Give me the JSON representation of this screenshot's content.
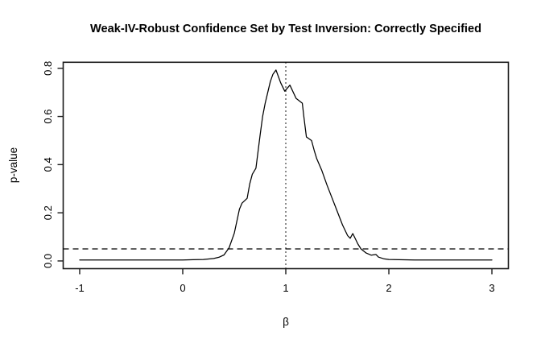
{
  "title": "Weak-IV-Robust Confidence Set by Test Inversion: Correctly Specified",
  "colors": {
    "background": "#ffffff",
    "foreground": "#000000",
    "box": "#1a1a1a"
  },
  "chart_data": {
    "type": "line",
    "title": "Weak-IV-Robust Confidence Set by Test Inversion: Correctly Specified",
    "xlabel": "β",
    "ylabel": "p-value",
    "xlim": [
      -1.16,
      3.16
    ],
    "ylim": [
      -0.032,
      0.825
    ],
    "x_ticks": [
      -1,
      0,
      1,
      2,
      3
    ],
    "x_tick_labels": [
      "-1",
      "0",
      "1",
      "2",
      "3"
    ],
    "y_ticks": [
      0.0,
      0.2,
      0.4,
      0.6,
      0.8
    ],
    "y_tick_labels": [
      "0.0",
      "0.2",
      "0.4",
      "0.6",
      "0.8"
    ],
    "grid": false,
    "legend": "none",
    "reference_lines": [
      {
        "name": "significance-level",
        "orientation": "horizontal",
        "value": 0.05,
        "style": "dashed",
        "color": "#000000"
      },
      {
        "name": "beta-equals-one",
        "orientation": "vertical",
        "value": 1,
        "style": "dotted",
        "color": "#000000"
      }
    ],
    "series": [
      {
        "name": "p-value curve",
        "color": "#000000",
        "x": [
          -1.0,
          -0.9,
          -0.8,
          -0.7,
          -0.6,
          -0.5,
          -0.4,
          -0.3,
          -0.2,
          -0.1,
          0.0,
          0.1,
          0.2,
          0.3,
          0.35,
          0.4,
          0.45,
          0.5,
          0.55,
          0.575,
          0.625,
          0.65,
          0.675,
          0.71,
          0.75,
          0.775,
          0.8,
          0.825,
          0.85,
          0.875,
          0.905,
          0.95,
          0.99,
          1.04,
          1.1,
          1.16,
          1.175,
          1.2,
          1.25,
          1.275,
          1.3,
          1.35,
          1.4,
          1.45,
          1.5,
          1.55,
          1.6,
          1.625,
          1.65,
          1.7,
          1.73,
          1.78,
          1.83,
          1.875,
          1.9,
          1.95,
          2.0,
          2.1,
          2.25,
          2.5,
          2.75,
          3.0
        ],
        "y": [
          0.004,
          0.004,
          0.004,
          0.004,
          0.004,
          0.004,
          0.004,
          0.004,
          0.004,
          0.004,
          0.004,
          0.005,
          0.006,
          0.01,
          0.015,
          0.025,
          0.055,
          0.115,
          0.215,
          0.24,
          0.26,
          0.32,
          0.36,
          0.385,
          0.52,
          0.6,
          0.655,
          0.7,
          0.745,
          0.775,
          0.793,
          0.74,
          0.705,
          0.73,
          0.675,
          0.655,
          0.6,
          0.515,
          0.5,
          0.46,
          0.425,
          0.375,
          0.315,
          0.26,
          0.205,
          0.15,
          0.105,
          0.094,
          0.114,
          0.07,
          0.05,
          0.033,
          0.024,
          0.027,
          0.016,
          0.009,
          0.006,
          0.005,
          0.004,
          0.004,
          0.004,
          0.004
        ]
      }
    ],
    "annotations": {
      "peak": {
        "beta": 0.905,
        "p_value": 0.79
      },
      "significance_threshold": 0.05,
      "vertical_reference_beta": 1
    }
  }
}
